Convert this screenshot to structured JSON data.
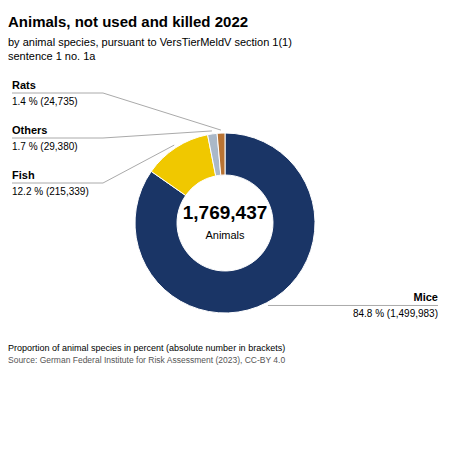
{
  "chart_data": {
    "type": "pie",
    "title": "Animals, not used and killed 2022",
    "subtitle": "by animal species, pursuant to VersTierMeldV section 1(1)\nsentence 1 no. 1a",
    "center_label": "1,769,437",
    "center_sublabel": "Animals",
    "categories": [
      "Mice",
      "Fish",
      "Others",
      "Rats"
    ],
    "values": [
      84.8,
      12.2,
      1.7,
      1.4
    ],
    "value_labels": [
      "84.8 % (1,499,983)",
      "12.2 % (215,339)",
      "1.7 % (29,380)",
      "1.4 % (24,735)"
    ],
    "colors": [
      "#1a3566",
      "#f0c800",
      "#aab8c8",
      "#b87333"
    ],
    "data_labels": true,
    "footnotes": [
      "Proportion of animal species in percent (absolute number in brackets)",
      "Source: German Federal Institute for Risk Assessment (2023), CC-BY 4.0"
    ]
  }
}
